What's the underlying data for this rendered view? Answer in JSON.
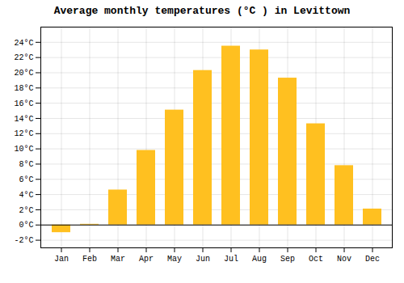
{
  "chart_data": {
    "type": "bar",
    "title": "Average monthly temperatures (°C ) in Levittown",
    "categories": [
      "Jan",
      "Feb",
      "Mar",
      "Apr",
      "May",
      "Jun",
      "Jul",
      "Aug",
      "Sep",
      "Oct",
      "Nov",
      "Dec"
    ],
    "values": [
      -1.0,
      0.1,
      4.6,
      9.8,
      15.1,
      20.3,
      23.5,
      23.0,
      19.3,
      13.3,
      7.8,
      2.1
    ],
    "color": "#FFC020",
    "ylim": [
      -3,
      26
    ],
    "yticks": [
      {
        "value": -2,
        "label": "-2°C"
      },
      {
        "value": 0,
        "label": "0°C"
      },
      {
        "value": 2,
        "label": "2°C"
      },
      {
        "value": 4,
        "label": "4°C"
      },
      {
        "value": 6,
        "label": "6°C"
      },
      {
        "value": 8,
        "label": "8°C"
      },
      {
        "value": 10,
        "label": "10°C"
      },
      {
        "value": 12,
        "label": "12°C"
      },
      {
        "value": 14,
        "label": "14°C"
      },
      {
        "value": 16,
        "label": "16°C"
      },
      {
        "value": 18,
        "label": "18°C"
      },
      {
        "value": 20,
        "label": "20°C"
      },
      {
        "value": 22,
        "label": "22°C"
      },
      {
        "value": 24,
        "label": "24°C"
      }
    ],
    "grid": true
  }
}
